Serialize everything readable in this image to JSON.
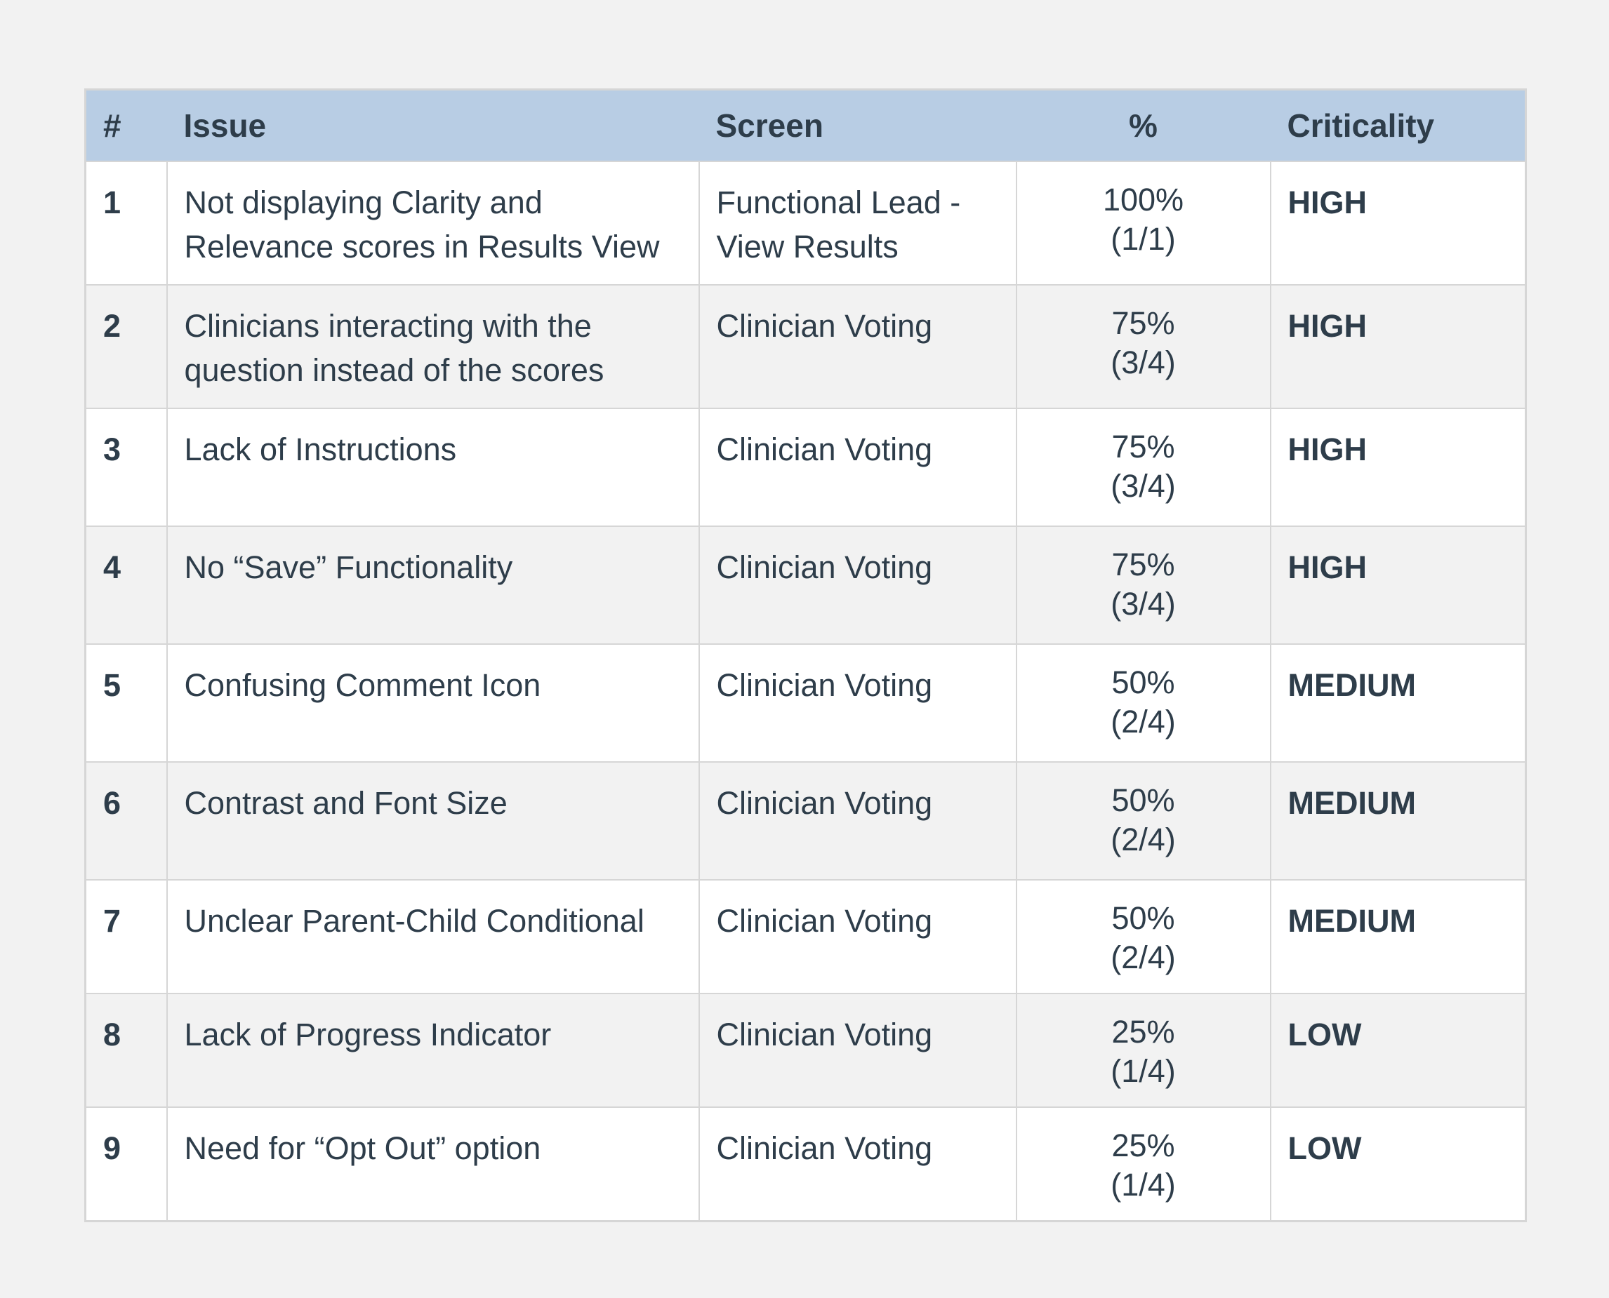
{
  "table": {
    "headers": {
      "num": "#",
      "issue": "Issue",
      "screen": "Screen",
      "percent": "%",
      "criticality": "Criticality"
    },
    "rows": [
      {
        "num": "1",
        "issue": "Not displaying Clarity and Relevance scores in Results View",
        "screen": "Functional Lead - View Results",
        "percent": "100%",
        "count": "(1/1)",
        "criticality": "HIGH"
      },
      {
        "num": "2",
        "issue": "Clinicians interacting with the question instead of the scores",
        "screen": "Clinician Voting",
        "percent": "75%",
        "count": "(3/4)",
        "criticality": "HIGH"
      },
      {
        "num": "3",
        "issue": "Lack of Instructions",
        "screen": "Clinician Voting",
        "percent": "75%",
        "count": "(3/4)",
        "criticality": "HIGH"
      },
      {
        "num": "4",
        "issue": "No “Save” Functionality",
        "screen": "Clinician Voting",
        "percent": "75%",
        "count": "(3/4)",
        "criticality": "HIGH"
      },
      {
        "num": "5",
        "issue": "Confusing Comment Icon",
        "screen": "Clinician Voting",
        "percent": "50%",
        "count": "(2/4)",
        "criticality": "MEDIUM"
      },
      {
        "num": "6",
        "issue": "Contrast and Font Size",
        "screen": "Clinician Voting",
        "percent": "50%",
        "count": "(2/4)",
        "criticality": "MEDIUM"
      },
      {
        "num": "7",
        "issue": "Unclear Parent-Child Conditional",
        "screen": "Clinician Voting",
        "percent": "50%",
        "count": "(2/4)",
        "criticality": "MEDIUM"
      },
      {
        "num": "8",
        "issue": "Lack of Progress Indicator",
        "screen": "Clinician Voting",
        "percent": "25%",
        "count": "(1/4)",
        "criticality": "LOW"
      },
      {
        "num": "9",
        "issue": "Need for “Opt Out” option",
        "screen": "Clinician Voting",
        "percent": "25%",
        "count": "(1/4)",
        "criticality": "LOW"
      }
    ]
  },
  "colors": {
    "header_bg": "#b8cde4",
    "high": "#e06666",
    "medium": "#f6b26b",
    "low": "#93c47d",
    "text": "#2e3d4a"
  }
}
